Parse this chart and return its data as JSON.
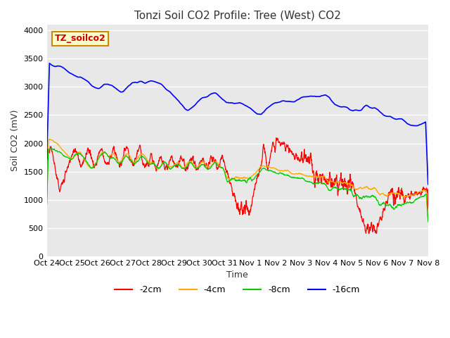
{
  "title": "Tonzi Soil CO2 Profile: Tree (West) CO2",
  "ylabel": "Soil CO2 (mV)",
  "xlabel": "Time",
  "ylim": [
    0,
    4100
  ],
  "yticks": [
    0,
    500,
    1000,
    1500,
    2000,
    2500,
    3000,
    3500,
    4000
  ],
  "xtick_labels": [
    "Oct 24",
    "Oct 25",
    "Oct 26",
    "Oct 27",
    "Oct 28",
    "Oct 29",
    "Oct 30",
    "Oct 31",
    "Nov 1",
    "Nov 2",
    "Nov 3",
    "Nov 4",
    "Nov 5",
    "Nov 6",
    "Nov 7",
    "Nov 8"
  ],
  "colors": {
    "2cm": "#ff0000",
    "4cm": "#ffaa00",
    "8cm": "#00cc00",
    "16cm": "#0000ff"
  },
  "legend_labels": [
    "-2cm",
    "-4cm",
    "-8cm",
    "-16cm"
  ],
  "bg_color": "#e8e8e8",
  "label_box_color": "#ffffcc",
  "label_box_text": "TZ_soilco2",
  "label_box_edge": "#cc8800"
}
